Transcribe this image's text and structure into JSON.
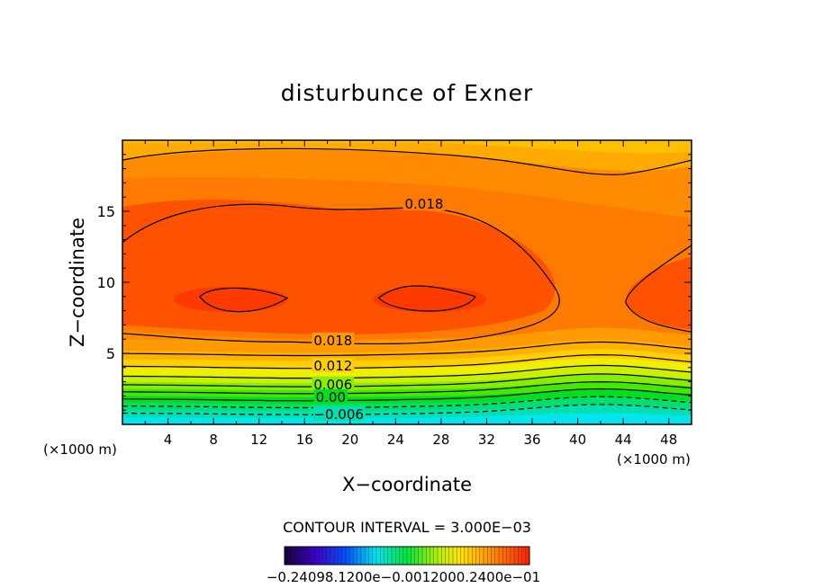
{
  "chart_data": {
    "type": "contour",
    "title": "disturbunce of Exner",
    "xlabel": "X−coordinate",
    "ylabel": "Z−coordinate",
    "x_unit_left": "(×1000 m)",
    "x_unit_right": "(×1000 m)",
    "x_ticks": [
      "4",
      "8",
      "12",
      "16",
      "20",
      "24",
      "28",
      "32",
      "36",
      "40",
      "44",
      "48"
    ],
    "x_tick_values": [
      4,
      8,
      12,
      16,
      20,
      24,
      28,
      32,
      36,
      40,
      44,
      48
    ],
    "y_ticks": [
      "5",
      "10",
      "15"
    ],
    "y_tick_values": [
      5,
      10,
      15
    ],
    "xlim": [
      0,
      50
    ],
    "ylim": [
      0,
      20
    ],
    "contour_interval_text": "CONTOUR INTERVAL = 3.000E−03",
    "contour_labels": [
      {
        "text": "0.018",
        "x": 26.5,
        "z": 15.5
      },
      {
        "text": "0.018",
        "x": 18.5,
        "z": 5.9
      },
      {
        "text": "0.012",
        "x": 18.5,
        "z": 4.1
      },
      {
        "text": "0.006",
        "x": 18.5,
        "z": 2.8
      },
      {
        "text": "0.00",
        "x": 18.3,
        "z": 1.9
      },
      {
        "text": "−0.006",
        "x": 19.0,
        "z": 0.7
      }
    ],
    "colorbar_labels_text": "−0.24098.1200e−0.0012000.2400e−01",
    "colorbar_range": [
      -0.024,
      0.024
    ],
    "colors": {
      "min": "#00e5ee",
      "low": "#00dd33",
      "zero": "#ddee00",
      "mid": "#ffaa00",
      "high": "#ff3a00",
      "max": "#ff2200"
    }
  }
}
